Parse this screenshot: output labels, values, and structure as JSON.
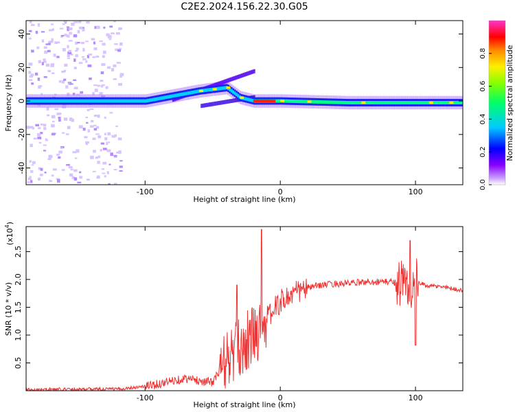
{
  "title": "C2E2.2024.156.22.30.G05",
  "spectrogram": {
    "type": "heatmap",
    "xlabel": "Height of straight line (km)",
    "ylabel": "Frequency (Hz)",
    "xlim": [
      -188,
      135
    ],
    "ylim": [
      -50,
      48
    ],
    "xticks": [
      -100,
      0,
      100
    ],
    "yticks": [
      -40,
      -20,
      0,
      20,
      40
    ],
    "colorbar": {
      "label": "Normalized spectral amplitude",
      "range": [
        0.0,
        1.0
      ],
      "ticks": [
        "0.0",
        "0.2",
        "0.4",
        "0.6",
        "0.8"
      ],
      "colormap": [
        "#ffffff",
        "#9900ff",
        "#0000ff",
        "#00ffff",
        "#00ff00",
        "#ffff00",
        "#ff0000",
        "#ff00ff"
      ]
    },
    "dominant_track": {
      "note": "",
      "x": [
        -188,
        -120,
        -100,
        -80,
        -60,
        -40,
        -30,
        -20,
        0,
        50,
        90,
        100,
        135
      ],
      "freq": [
        0,
        0,
        0,
        3,
        6,
        8,
        2,
        0,
        0,
        -1,
        -1,
        -1,
        -1
      ]
    }
  },
  "chart_data": {
    "type": "line",
    "title": "",
    "xlabel": "Height of straight line (km)",
    "ylabel": "SNR (10 * v/v)",
    "ylabel_scale": "(x10^4)",
    "ylabel_scale_base": "(x10",
    "ylabel_scale_exp": "4",
    "y_multiplier_label": "(x10",
    "xlim": [
      -188,
      135
    ],
    "ylim": [
      0.0,
      2.95
    ],
    "xticks": [
      -100,
      0,
      100
    ],
    "xtick_labels": [
      "-100",
      "0",
      "100"
    ],
    "yticks": [
      0.5,
      1.0,
      1.5,
      2.0,
      2.5
    ],
    "ytick_labels": [
      "0.5",
      "1.0",
      "1.5",
      "2.0",
      "2.5"
    ],
    "line_color": "#ee3333",
    "series": [
      {
        "x": [
          -188,
          -150,
          -120,
          -100,
          -90,
          -80,
          -70,
          -60,
          -50,
          -45,
          -40,
          -35,
          -30,
          -25,
          -20,
          -15,
          -10,
          -5,
          0,
          10,
          20,
          30,
          40,
          50,
          60,
          70,
          80,
          85,
          90,
          95,
          100,
          110,
          120,
          135
        ],
        "y": [
          0.02,
          0.03,
          0.03,
          0.08,
          0.12,
          0.18,
          0.22,
          0.18,
          0.15,
          0.35,
          0.55,
          0.65,
          0.75,
          0.9,
          1.0,
          1.1,
          1.3,
          1.45,
          1.6,
          1.75,
          1.85,
          1.9,
          1.92,
          1.93,
          1.95,
          1.96,
          1.96,
          1.95,
          1.95,
          1.8,
          1.95,
          1.88,
          1.87,
          1.8
        ]
      }
    ],
    "spikes": [
      {
        "x": -32,
        "y": 1.9
      },
      {
        "x": -14,
        "y": 2.9
      },
      {
        "x": 96,
        "y": 2.7
      },
      {
        "x": 100,
        "y": 0.82
      }
    ]
  }
}
